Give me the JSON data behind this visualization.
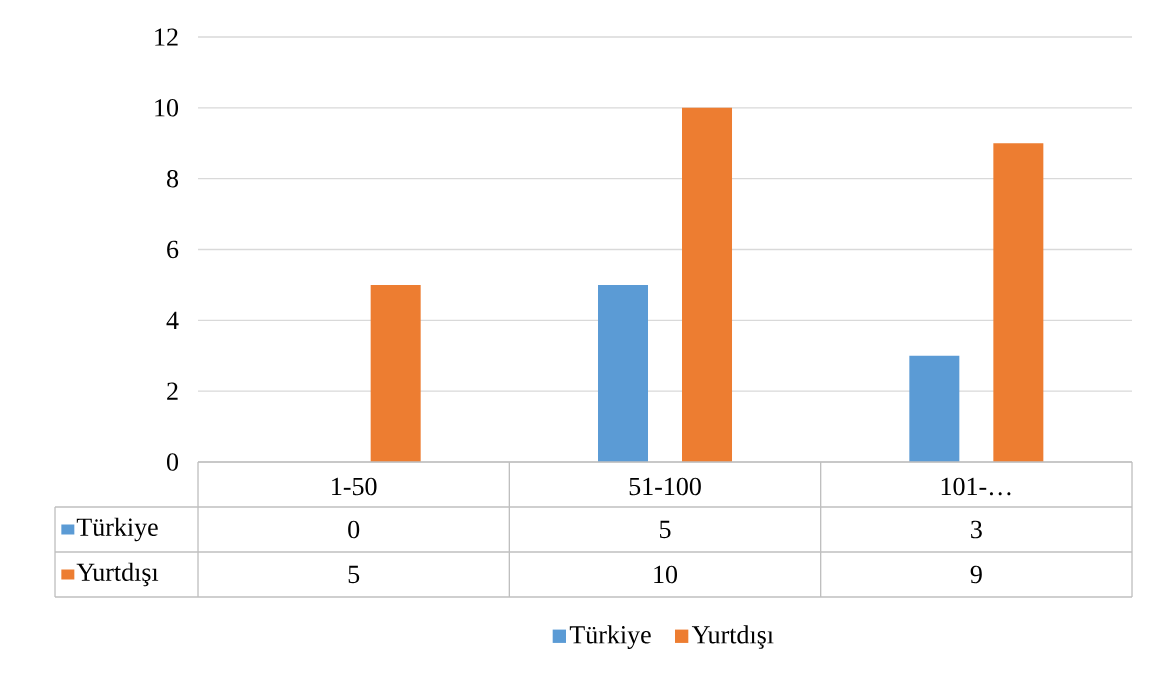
{
  "chart_data": {
    "type": "bar",
    "categories": [
      "1-50",
      "51-100",
      "101-…"
    ],
    "series": [
      {
        "name": "Türkiye",
        "color": "#5b9bd5",
        "values": [
          0,
          5,
          3
        ]
      },
      {
        "name": "Yurtdışı",
        "color": "#ed7d31",
        "values": [
          5,
          10,
          9
        ]
      }
    ],
    "ylim": [
      0,
      12
    ],
    "yticks": [
      0,
      2,
      4,
      6,
      8,
      10,
      12
    ],
    "grid": "y",
    "legend": "bottom",
    "data_labels": true
  }
}
